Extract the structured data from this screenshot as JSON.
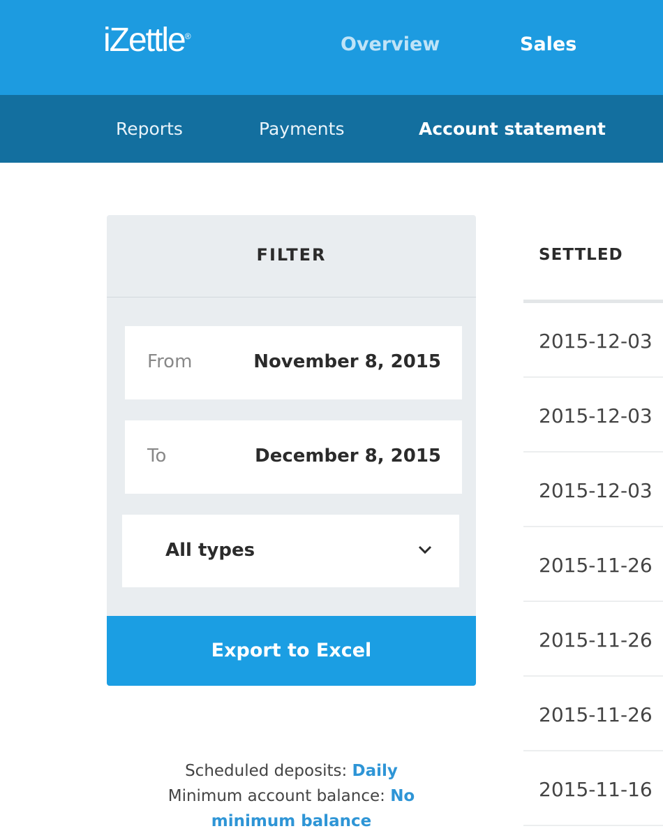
{
  "header": {
    "logo": "iZettle",
    "nav": [
      "Overview",
      "Sales"
    ],
    "active_nav": "Sales"
  },
  "subnav": {
    "items": [
      "Reports",
      "Payments",
      "Account statement"
    ],
    "active": "Account statement"
  },
  "filter": {
    "title": "FILTER",
    "from_label": "From",
    "from_value": "November 8, 2015",
    "to_label": "To",
    "to_value": "December 8, 2015",
    "type_value": "All types",
    "export_label": "Export to Excel"
  },
  "info": {
    "deposits_label": "Scheduled deposits:",
    "deposits_value": "Daily",
    "balance_label": "Minimum account balance:",
    "balance_value": "No minimum balance"
  },
  "table": {
    "header": "SETTLED",
    "rows": [
      "2015-12-03",
      "2015-12-03",
      "2015-12-03",
      "2015-11-26",
      "2015-11-26",
      "2015-11-26",
      "2015-11-16"
    ]
  },
  "colors": {
    "header": "#1d9be0",
    "subnav": "#136f9f",
    "accent": "#1b9ee3"
  }
}
